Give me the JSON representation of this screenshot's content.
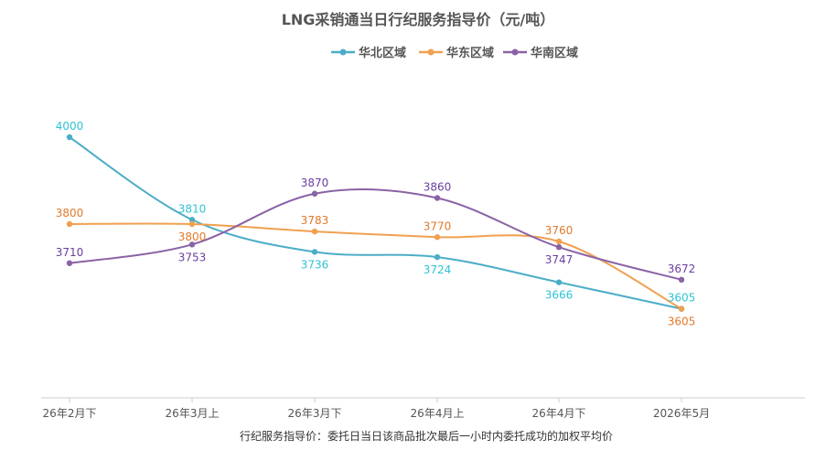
{
  "chart_data": {
    "type": "line",
    "title": "LNG采销通当日行纪服务指导价（元/吨）",
    "categories": [
      "26年2月下",
      "26年3月上",
      "26年3月下",
      "26年4月上",
      "26年4月下",
      "2026年5月"
    ],
    "series": [
      {
        "name": "华北区域",
        "color": "#4cadc7",
        "label_color": "#2fc3d4",
        "values": [
          4000,
          3810,
          3736,
          3724,
          3666,
          3605
        ]
      },
      {
        "name": "华东区域",
        "color": "#f0a050",
        "label_color": "#e07a2a",
        "values": [
          3800,
          3800,
          3783,
          3770,
          3760,
          3605
        ]
      },
      {
        "name": "华南区域",
        "color": "#8a62a6",
        "label_color": "#6b3fa0",
        "values": [
          3710,
          3753,
          3870,
          3860,
          3747,
          3672
        ]
      }
    ],
    "ylim": [
      3400,
      4100
    ],
    "grid": false,
    "legend_position": "top-center",
    "footnote": "行纪服务指导价：委托日当日该商品批次最后一小时内委托成功的加权平均价"
  }
}
